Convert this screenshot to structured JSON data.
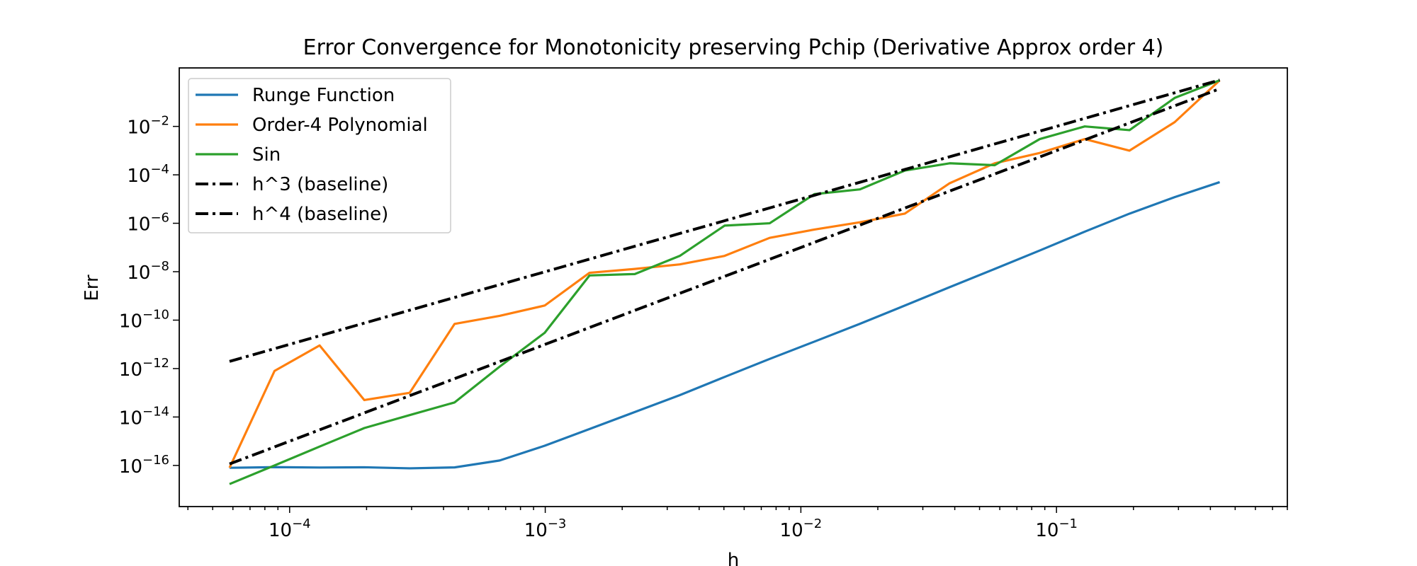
{
  "chart_data": {
    "type": "line",
    "title": "Error Convergence for Monotonicity preserving Pchip (Derivative Approx order 4)",
    "xlabel": "h",
    "ylabel": "Err",
    "xscale": "log",
    "yscale": "log",
    "xlim": [
      3.7e-05,
      0.8
    ],
    "ylim": [
      2e-18,
      2.6
    ],
    "x_ticks": [
      {
        "value": 0.0001,
        "base": "10",
        "exp": "−4"
      },
      {
        "value": 0.001,
        "base": "10",
        "exp": "−3"
      },
      {
        "value": 0.01,
        "base": "10",
        "exp": "−2"
      },
      {
        "value": 0.1,
        "base": "10",
        "exp": "−1"
      }
    ],
    "y_ticks": [
      {
        "value": 1e-16,
        "base": "10",
        "exp": "−16"
      },
      {
        "value": 1e-14,
        "base": "10",
        "exp": "−14"
      },
      {
        "value": 1e-12,
        "base": "10",
        "exp": "−12"
      },
      {
        "value": 1e-10,
        "base": "10",
        "exp": "−10"
      },
      {
        "value": 1e-08,
        "base": "10",
        "exp": "−8"
      },
      {
        "value": 1e-06,
        "base": "10",
        "exp": "−6"
      },
      {
        "value": 0.0001,
        "base": "10",
        "exp": "−4"
      },
      {
        "value": 0.01,
        "base": "10",
        "exp": "−2"
      }
    ],
    "grid": false,
    "legend_position": "upper-left",
    "x": [
      5.82e-05,
      8.73e-05,
      0.000131,
      0.000196,
      0.000295,
      0.000442,
      0.000663,
      0.000995,
      0.00149,
      0.00224,
      0.00336,
      0.00503,
      0.00755,
      0.0113,
      0.017,
      0.0255,
      0.0382,
      0.0573,
      0.086,
      0.129,
      0.193,
      0.29,
      0.435
    ],
    "series": [
      {
        "name": "Runge Function",
        "color": "#1f77b4",
        "style": "solid",
        "values": [
          8e-17,
          8.5e-17,
          8.2e-17,
          8.4e-17,
          7.6e-17,
          8.3e-17,
          1.6e-16,
          6.5e-16,
          3.2e-15,
          1.6e-14,
          8e-14,
          4.5e-13,
          2.5e-12,
          1.3e-11,
          7e-11,
          4e-10,
          2.3e-09,
          1.3e-08,
          7.5e-08,
          4.5e-07,
          2.5e-06,
          1.2e-05,
          5e-05
        ]
      },
      {
        "name": "Order-4 Polynomial",
        "color": "#ff7f0e",
        "style": "solid",
        "values": [
          8e-17,
          8e-13,
          9e-12,
          5e-14,
          1e-13,
          7e-11,
          1.5e-10,
          4e-10,
          9e-09,
          1.3e-08,
          2e-08,
          4.5e-08,
          2.5e-07,
          5.5e-07,
          1.1e-06,
          2.5e-06,
          4.5e-05,
          0.0003,
          0.0008,
          0.003,
          0.001,
          0.015,
          0.8
        ]
      },
      {
        "name": "Sin",
        "color": "#2ca02c",
        "style": "solid",
        "values": [
          1.7e-17,
          1e-16,
          6e-16,
          3.5e-15,
          1.2e-14,
          4e-14,
          1.2e-12,
          3e-11,
          7e-09,
          8e-09,
          4.5e-08,
          8e-07,
          1e-06,
          1.6e-05,
          2.5e-05,
          0.00015,
          0.0003,
          0.00025,
          0.003,
          0.01,
          0.007,
          0.15,
          0.8
        ]
      },
      {
        "name": "h^3 (baseline)",
        "color": "#000000",
        "style": "dashdot",
        "coef": 10,
        "power": 3
      },
      {
        "name": "h^4 (baseline)",
        "color": "#000000",
        "style": "dashdot",
        "coef": 10,
        "power": 4
      }
    ]
  }
}
